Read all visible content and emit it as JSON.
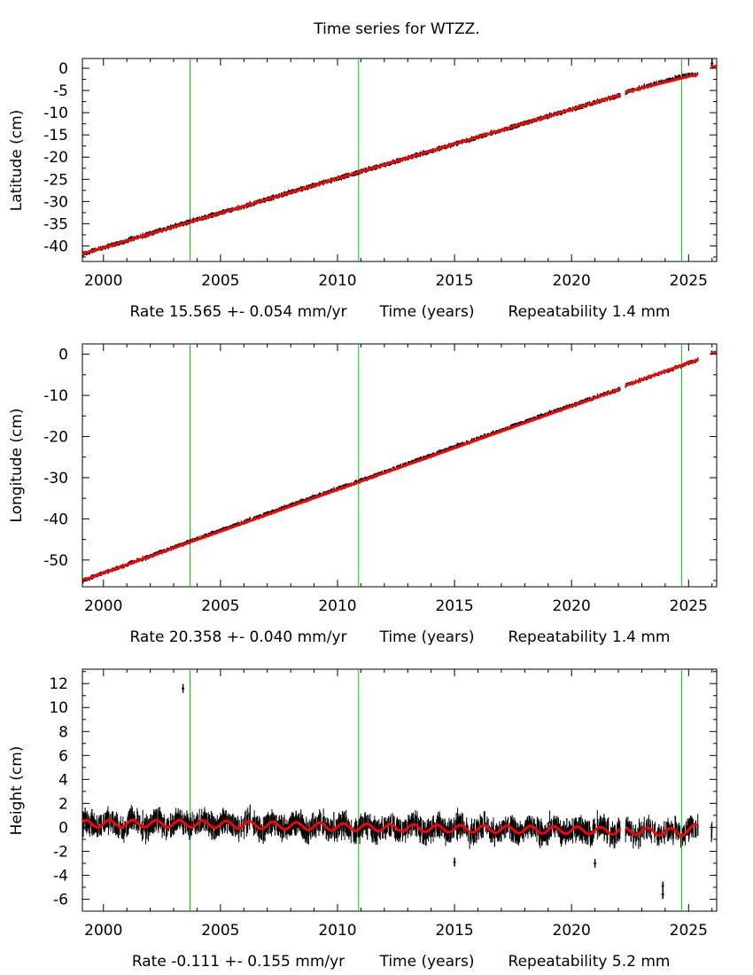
{
  "title": "Time series for WTZZ.",
  "xlabel": "Time (years)",
  "x_ticks": [
    2000,
    2005,
    2010,
    2015,
    2020,
    2025
  ],
  "xlim": [
    1999.1,
    2026.2
  ],
  "colors": {
    "data": "#000000",
    "model": "#ff0000",
    "events": "#00cc00"
  },
  "event_lines": [
    2003.7,
    2010.9,
    2024.7
  ],
  "chart_data": [
    {
      "type": "scatter",
      "ylabel": "Latitude (cm)",
      "ylim": [
        -43.5,
        2.2
      ],
      "y_ticks": [
        0,
        -5,
        -10,
        -15,
        -20,
        -25,
        -30,
        -35,
        -40
      ],
      "rate_text": "Rate 15.565 +- 0.054 mm/yr",
      "repeatability_text": "Repeatability 1.4 mm",
      "rate_mm_per_yr": 15.565,
      "repeatability_mm": 1.4,
      "series": [
        {
          "type": "scatter",
          "x": [
            1999.1,
            2001,
            2003.7,
            2006,
            2008,
            2010.9,
            2013,
            2016,
            2019,
            2022.1,
            2022.3,
            2024.7,
            2025.4,
            2026
          ],
          "y": [
            -41.8,
            -38.8,
            -34.5,
            -31.1,
            -27.9,
            -23.4,
            -20.2,
            -15.5,
            -10.8,
            -6.0,
            -5.4,
            -1.8,
            -1.3,
            0.4
          ]
        },
        {
          "type": "line",
          "x": [
            1999.1,
            2025.4
          ],
          "y": [
            -41.8,
            -1.3
          ]
        }
      ],
      "outliers": [
        {
          "x": 2026,
          "y": 1.1
        }
      ]
    },
    {
      "type": "scatter",
      "ylabel": "Longitude (cm)",
      "ylim": [
        -56.5,
        2.5
      ],
      "y_ticks": [
        0,
        -10,
        -20,
        -30,
        -40,
        -50
      ],
      "rate_text": "Rate 20.358 +- 0.040 mm/yr",
      "repeatability_text": "Repeatability 1.4 mm",
      "rate_mm_per_yr": 20.358,
      "repeatability_mm": 1.4,
      "series": [
        {
          "type": "scatter",
          "x": [
            1999.1,
            2001,
            2003.7,
            2006,
            2008,
            2010.9,
            2013,
            2016,
            2019,
            2022.1,
            2022.3,
            2024.7,
            2025.4,
            2026
          ],
          "y": [
            -55.0,
            -51.1,
            -45.5,
            -40.8,
            -36.7,
            -30.9,
            -26.6,
            -20.5,
            -14.4,
            -8.4,
            -7.6,
            -2.8,
            -1.3,
            0.4
          ]
        },
        {
          "type": "line",
          "x": [
            1999.1,
            2025.4
          ],
          "y": [
            -55.0,
            -1.3
          ]
        }
      ]
    },
    {
      "type": "scatter",
      "ylabel": "Height (cm)",
      "ylim": [
        -7,
        13.2
      ],
      "y_ticks": [
        12,
        10,
        8,
        6,
        4,
        2,
        0,
        -2,
        -4,
        -6
      ],
      "rate_text": "Rate -0.111 +- 0.155 mm/yr",
      "repeatability_text": "Repeatability 5.2 mm",
      "rate_mm_per_yr": -0.111,
      "repeatability_mm": 5.2,
      "series": [
        {
          "type": "scatter",
          "x": [
            1999.1,
            2003.7,
            2010.9,
            2022.1,
            2022.3,
            2024.7,
            2025.4,
            2026
          ],
          "y": [
            0.3,
            0.3,
            0.0,
            -0.3,
            -0.3,
            -0.4,
            0.0,
            -0.4
          ]
        },
        {
          "type": "line",
          "x": [
            1999.1,
            2025.4
          ],
          "y": [
            0.2,
            -0.1
          ],
          "seasonal_amplitude": 0.3
        }
      ],
      "outliers": [
        {
          "x": 2003.4,
          "y": 11.6
        },
        {
          "x": 2023.9,
          "y": -5.6
        },
        {
          "x": 2023.9,
          "y": -4.9
        },
        {
          "x": 2015.0,
          "y": -2.9
        },
        {
          "x": 2021.0,
          "y": -3.0
        }
      ]
    }
  ]
}
